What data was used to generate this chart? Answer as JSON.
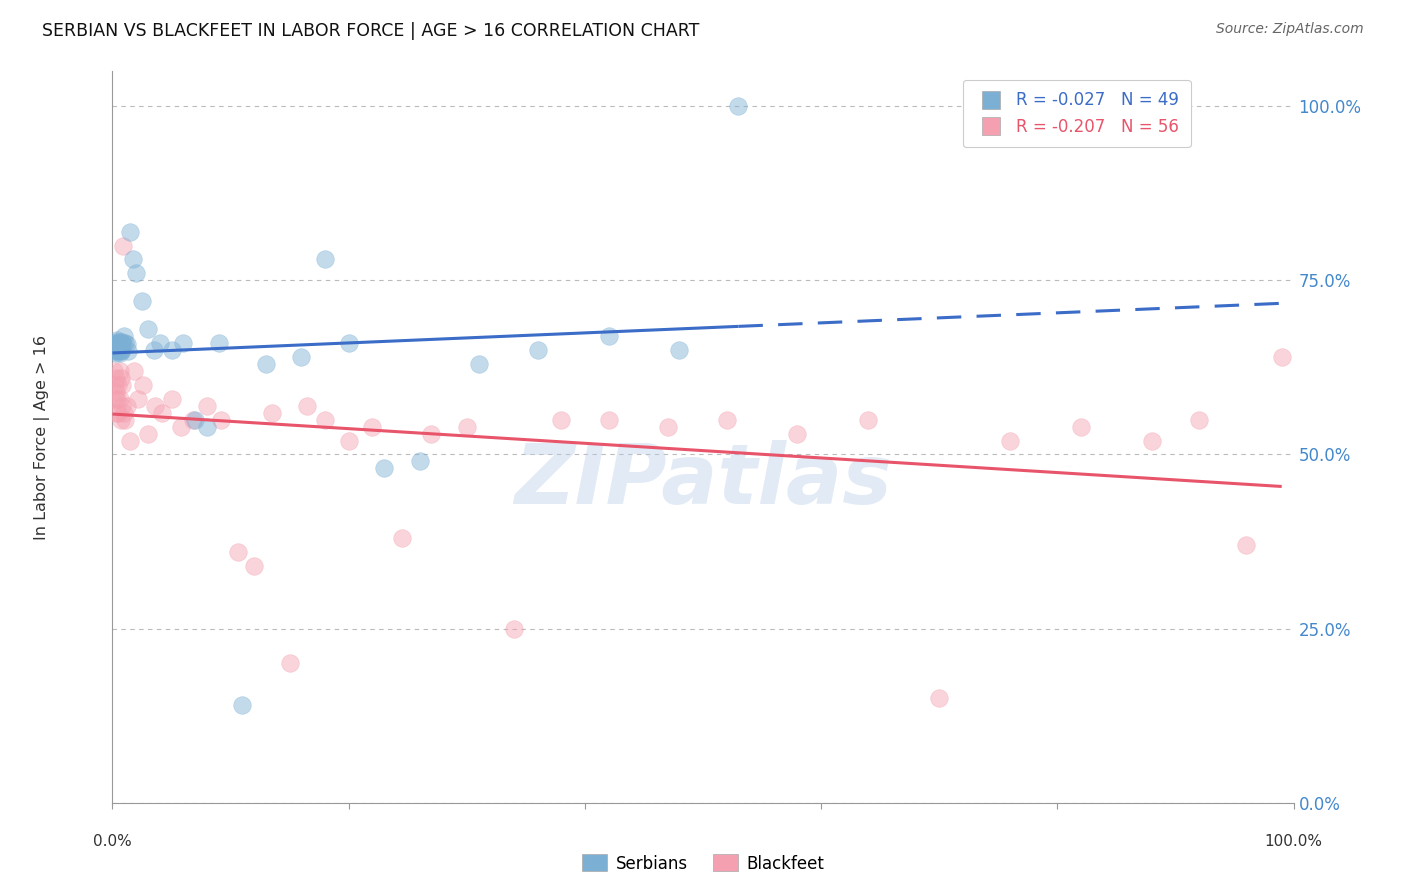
{
  "title": "SERBIAN VS BLACKFEET IN LABOR FORCE | AGE > 16 CORRELATION CHART",
  "source": "Source: ZipAtlas.com",
  "ylabel": "In Labor Force | Age > 16",
  "right_yticklabels": [
    "0.0%",
    "25.0%",
    "50.0%",
    "75.0%",
    "100.0%"
  ],
  "right_ytick_vals": [
    0.0,
    0.25,
    0.5,
    0.75,
    1.0
  ],
  "legend_serbian": "R = -0.027   N = 49",
  "legend_blackfeet": "R = -0.207   N = 56",
  "serbian_color": "#7BAFD4",
  "blackfeet_color": "#F4A0B0",
  "serbian_line_color": "#3B6CC7",
  "blackfeet_line_color": "#E8546A",
  "watermark": "ZIPatlas",
  "serbian_x": [
    0.001,
    0.002,
    0.002,
    0.003,
    0.003,
    0.003,
    0.004,
    0.004,
    0.004,
    0.005,
    0.005,
    0.005,
    0.006,
    0.006,
    0.006,
    0.007,
    0.007,
    0.007,
    0.008,
    0.008,
    0.009,
    0.01,
    0.011,
    0.012,
    0.013,
    0.015,
    0.017,
    0.02,
    0.025,
    0.03,
    0.035,
    0.04,
    0.05,
    0.06,
    0.07,
    0.08,
    0.09,
    0.11,
    0.13,
    0.16,
    0.18,
    0.2,
    0.23,
    0.26,
    0.31,
    0.36,
    0.42,
    0.48,
    0.53
  ],
  "serbian_y": [
    0.655,
    0.66,
    0.648,
    0.662,
    0.65,
    0.645,
    0.658,
    0.665,
    0.652,
    0.66,
    0.648,
    0.655,
    0.65,
    0.662,
    0.645,
    0.655,
    0.648,
    0.66,
    0.65,
    0.662,
    0.658,
    0.67,
    0.66,
    0.658,
    0.648,
    0.82,
    0.78,
    0.76,
    0.72,
    0.68,
    0.65,
    0.66,
    0.65,
    0.66,
    0.55,
    0.54,
    0.66,
    0.14,
    0.63,
    0.64,
    0.78,
    0.66,
    0.48,
    0.49,
    0.63,
    0.65,
    0.67,
    0.65,
    1.0
  ],
  "blackfeet_x": [
    0.001,
    0.002,
    0.002,
    0.003,
    0.003,
    0.004,
    0.004,
    0.005,
    0.005,
    0.006,
    0.006,
    0.007,
    0.007,
    0.008,
    0.008,
    0.009,
    0.01,
    0.011,
    0.012,
    0.015,
    0.018,
    0.022,
    0.026,
    0.03,
    0.036,
    0.042,
    0.05,
    0.058,
    0.068,
    0.08,
    0.092,
    0.106,
    0.12,
    0.135,
    0.15,
    0.165,
    0.18,
    0.2,
    0.22,
    0.245,
    0.27,
    0.3,
    0.34,
    0.38,
    0.42,
    0.47,
    0.52,
    0.58,
    0.64,
    0.7,
    0.76,
    0.82,
    0.88,
    0.92,
    0.96,
    0.99
  ],
  "blackfeet_y": [
    0.62,
    0.6,
    0.58,
    0.61,
    0.59,
    0.56,
    0.58,
    0.6,
    0.56,
    0.62,
    0.58,
    0.61,
    0.55,
    0.57,
    0.6,
    0.8,
    0.56,
    0.55,
    0.57,
    0.52,
    0.62,
    0.58,
    0.6,
    0.53,
    0.57,
    0.56,
    0.58,
    0.54,
    0.55,
    0.57,
    0.55,
    0.36,
    0.34,
    0.56,
    0.2,
    0.57,
    0.55,
    0.52,
    0.54,
    0.38,
    0.53,
    0.54,
    0.25,
    0.55,
    0.55,
    0.54,
    0.55,
    0.53,
    0.55,
    0.15,
    0.52,
    0.54,
    0.52,
    0.55,
    0.37,
    0.64
  ],
  "xlim": [
    0.0,
    1.0
  ],
  "ylim": [
    0.0,
    1.05
  ],
  "xtick_positions": [
    0.0,
    0.2,
    0.4,
    0.6,
    0.8,
    1.0
  ],
  "xtick_labels": [
    "0.0%",
    "",
    "",
    "",
    "",
    "100.0%"
  ],
  "grid_color": "#BBBBBB",
  "background_color": "#FFFFFF",
  "marker_size": 160,
  "marker_alpha": 0.45
}
